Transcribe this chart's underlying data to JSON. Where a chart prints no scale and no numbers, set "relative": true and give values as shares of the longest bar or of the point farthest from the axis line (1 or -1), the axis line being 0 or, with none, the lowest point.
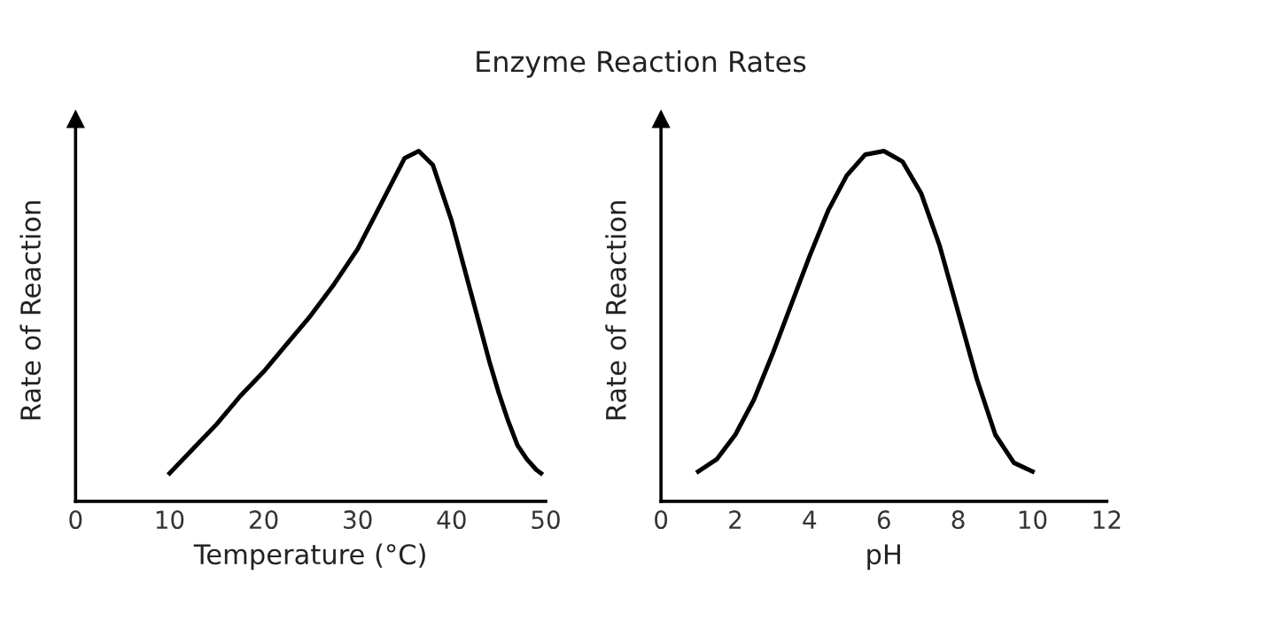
{
  "chart_data": [
    {
      "type": "line",
      "title": "Enzyme Reaction Rates",
      "xlabel": "Temperature (°C)",
      "ylabel": "Rate of Reaction",
      "relative": true,
      "xlim": [
        0,
        50
      ],
      "xticks": [
        0,
        10,
        20,
        30,
        40,
        50
      ],
      "tick_labels": "x",
      "grid": false,
      "legend": false,
      "series": [
        {
          "color": "#000000",
          "x": [
            10,
            12.5,
            15,
            17.5,
            20,
            22.5,
            25,
            27.5,
            30,
            32.5,
            35,
            36.5,
            38,
            40,
            42,
            44,
            45,
            46,
            47,
            48,
            49,
            49.5
          ],
          "values": [
            0.08,
            0.15,
            0.22,
            0.3,
            0.37,
            0.45,
            0.53,
            0.62,
            0.72,
            0.85,
            0.98,
            1.0,
            0.96,
            0.8,
            0.6,
            0.4,
            0.31,
            0.23,
            0.16,
            0.12,
            0.09,
            0.08
          ]
        }
      ]
    },
    {
      "type": "line",
      "xlabel": "pH",
      "ylabel": "Rate of Reaction",
      "relative": true,
      "xlim": [
        0,
        12
      ],
      "xticks": [
        0,
        2,
        4,
        6,
        8,
        10,
        12
      ],
      "tick_labels": "x",
      "grid": false,
      "legend": false,
      "series": [
        {
          "color": "#000000",
          "x": [
            1,
            1.5,
            2,
            2.5,
            3,
            3.5,
            4,
            4.5,
            5,
            5.5,
            6,
            6.5,
            7,
            7.5,
            8,
            8.5,
            9,
            9.5,
            10
          ],
          "values": [
            0.085,
            0.12,
            0.19,
            0.29,
            0.42,
            0.56,
            0.7,
            0.83,
            0.93,
            0.99,
            1.0,
            0.97,
            0.88,
            0.73,
            0.54,
            0.35,
            0.19,
            0.11,
            0.085
          ]
        }
      ]
    }
  ]
}
